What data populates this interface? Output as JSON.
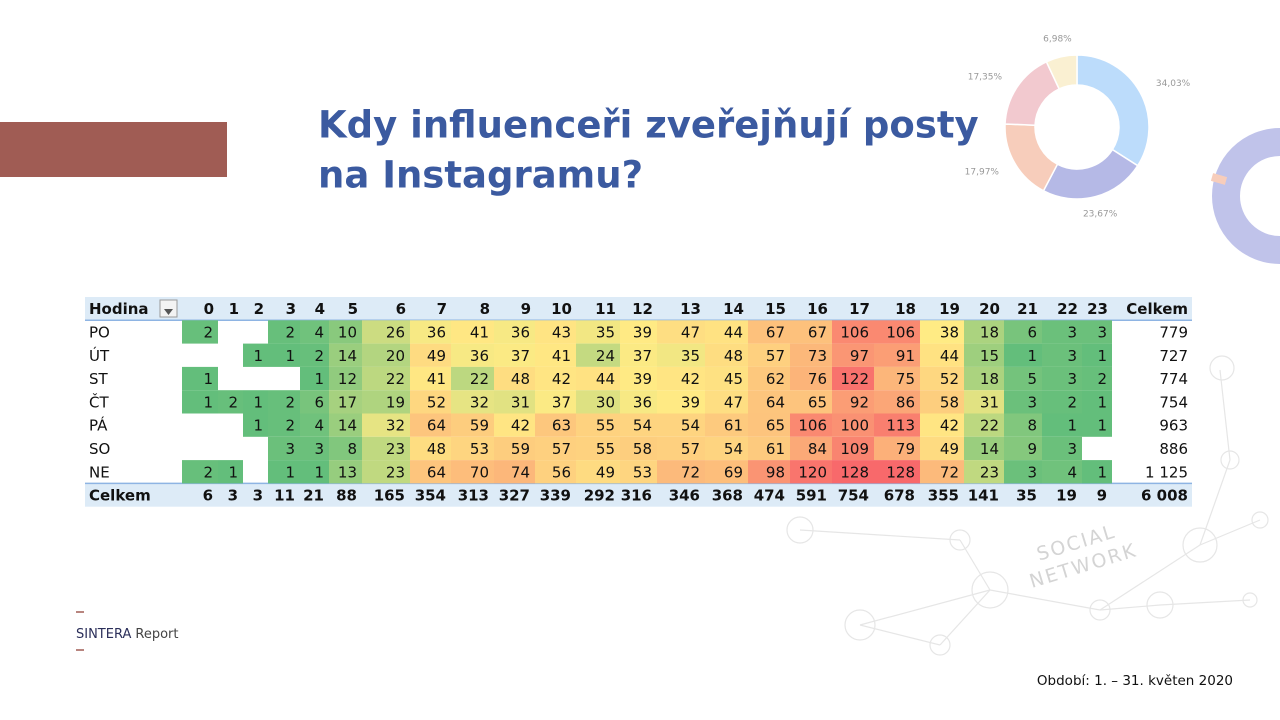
{
  "title": {
    "lines": [
      "Kdy influenceři zveřejňují posty",
      "na Instagramu?"
    ]
  },
  "donut": {
    "values": [
      34.03,
      23.67,
      17.97,
      17.35,
      6.98
    ],
    "value_labels": [
      "34,03%",
      "23,67%",
      "17,97%",
      "17,35%",
      "6,98%"
    ],
    "colors": [
      "#bcdcfb",
      "#b5b9e6",
      "#f7cdbb",
      "#f2c9cf",
      "#faf0d2"
    ]
  },
  "table": {
    "header": [
      "Hodina",
      0,
      1,
      2,
      3,
      4,
      5,
      6,
      7,
      8,
      9,
      10,
      11,
      12,
      13,
      14,
      15,
      16,
      17,
      18,
      19,
      20,
      21,
      22,
      23,
      "Celkem"
    ],
    "rows": [
      {
        "label": "PO",
        "cells": [
          2,
          null,
          null,
          2,
          4,
          10,
          26,
          36,
          41,
          36,
          43,
          35,
          39,
          47,
          44,
          67,
          67,
          106,
          106,
          38,
          18,
          6,
          3,
          3
        ],
        "total": 779
      },
      {
        "label": "ÚT",
        "cells": [
          null,
          null,
          1,
          1,
          2,
          14,
          20,
          49,
          36,
          37,
          41,
          24,
          37,
          35,
          48,
          57,
          73,
          97,
          91,
          44,
          15,
          1,
          3,
          1
        ],
        "total": 727
      },
      {
        "label": "ST",
        "cells": [
          1,
          null,
          null,
          null,
          1,
          12,
          22,
          41,
          22,
          48,
          42,
          44,
          39,
          42,
          45,
          62,
          76,
          122,
          75,
          52,
          18,
          5,
          3,
          2
        ],
        "total": 774
      },
      {
        "label": "ČT",
        "cells": [
          1,
          2,
          1,
          2,
          6,
          17,
          19,
          52,
          32,
          31,
          37,
          30,
          36,
          39,
          47,
          64,
          65,
          92,
          86,
          58,
          31,
          3,
          2,
          1
        ],
        "total": 754
      },
      {
        "label": "PÁ",
        "cells": [
          null,
          null,
          1,
          2,
          4,
          14,
          32,
          64,
          59,
          42,
          63,
          55,
          54,
          54,
          61,
          65,
          106,
          100,
          113,
          42,
          22,
          8,
          1,
          1
        ],
        "total": 963
      },
      {
        "label": "SO",
        "cells": [
          null,
          null,
          null,
          3,
          3,
          8,
          23,
          48,
          53,
          59,
          57,
          55,
          58,
          57,
          54,
          61,
          84,
          109,
          79,
          49,
          14,
          9,
          3,
          null
        ],
        "total": 886
      },
      {
        "label": "NE",
        "cells": [
          2,
          1,
          null,
          1,
          1,
          13,
          23,
          64,
          70,
          74,
          56,
          49,
          53,
          72,
          69,
          98,
          120,
          128,
          128,
          72,
          23,
          3,
          4,
          1
        ],
        "total": "1 125"
      }
    ],
    "footer": {
      "label": "Celkem",
      "cells": [
        6,
        3,
        3,
        11,
        21,
        88,
        165,
        354,
        313,
        327,
        339,
        292,
        316,
        346,
        368,
        474,
        591,
        754,
        678,
        355,
        141,
        35,
        19,
        9
      ],
      "total": "6 008"
    }
  },
  "watermark": [
    "SOCIAL",
    "NETWORK"
  ],
  "brand": {
    "name": "SINTERA",
    "suffix": "Report"
  },
  "period": "Období: 1. – 31. květen 2020"
}
